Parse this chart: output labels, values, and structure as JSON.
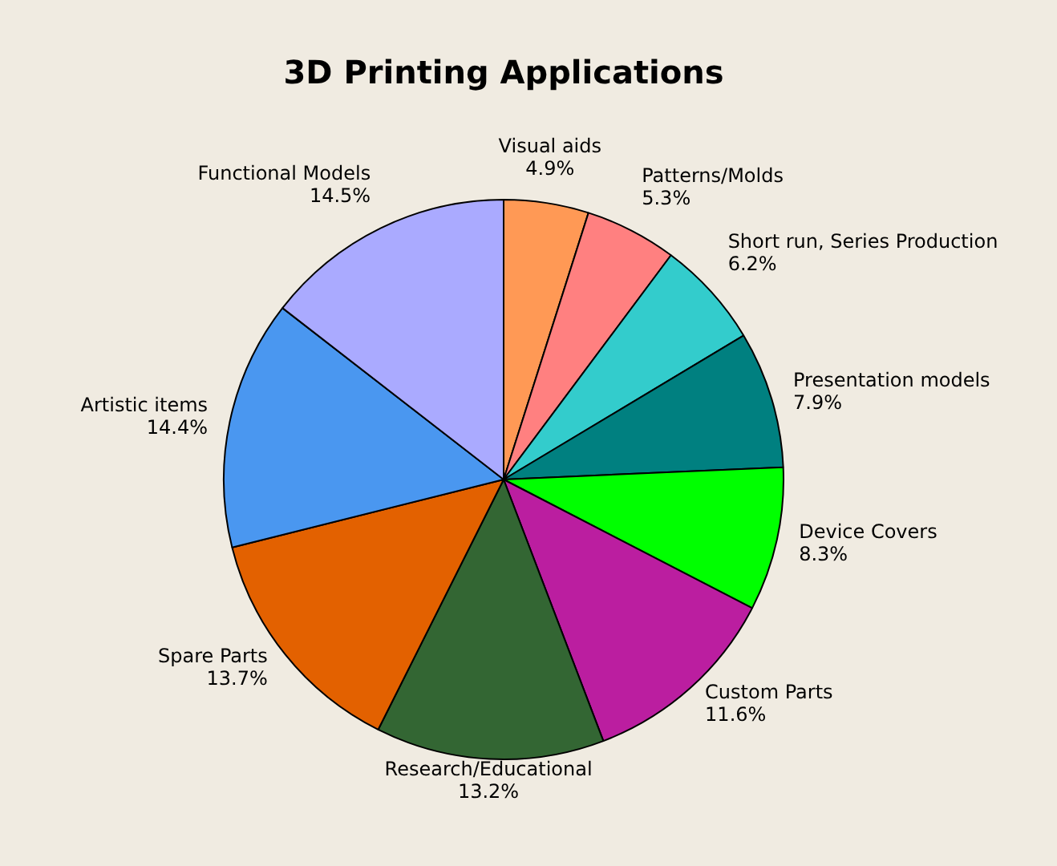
{
  "chart_data": {
    "type": "pie",
    "title": "3D Printing Applications",
    "categories": [
      "Visual aids",
      "Patterns/Molds",
      "Short run, Series Production",
      "Presentation models",
      "Device Covers",
      "Custom Parts",
      "Research/Educational",
      "Spare Parts",
      "Artistic items",
      "Functional Models"
    ],
    "values": [
      4.9,
      5.3,
      6.2,
      7.9,
      8.3,
      11.6,
      13.2,
      13.7,
      14.4,
      14.5
    ],
    "value_labels": [
      "4.9%",
      "5.3%",
      "6.2%",
      "7.9%",
      "8.3%",
      "11.6%",
      "13.2%",
      "13.7%",
      "14.4%",
      "14.5%"
    ],
    "colors": [
      "#ff9955",
      "#ff8080",
      "#33cccc",
      "#008080",
      "#00ff00",
      "#bb1ea0",
      "#336633",
      "#e36100",
      "#4a97f0",
      "#aaaaff"
    ]
  }
}
